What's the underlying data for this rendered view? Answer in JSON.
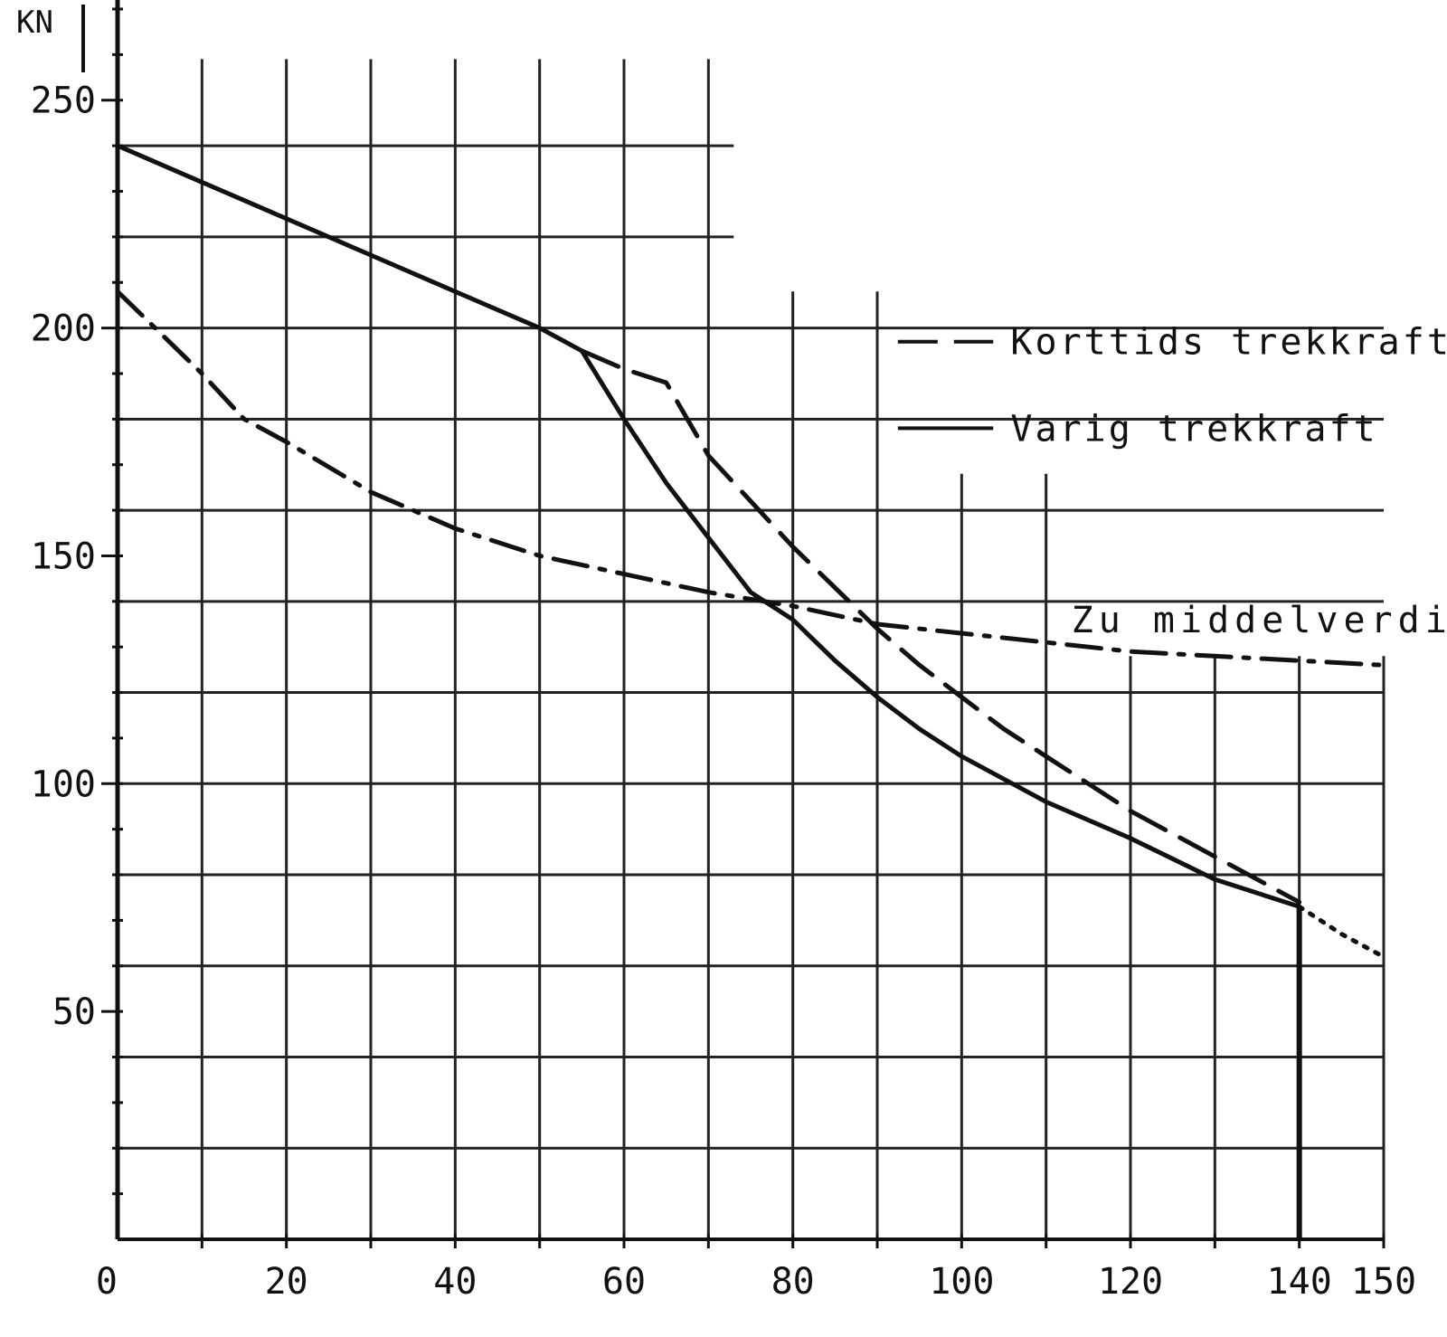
{
  "chart_data": {
    "type": "line",
    "title": "",
    "xlabel": "",
    "ylabel": "KN",
    "xlim": [
      0,
      150
    ],
    "ylim": [
      0,
      270
    ],
    "x_ticks": [
      {
        "value": 0,
        "label": "0"
      },
      {
        "value": 20,
        "label": "20"
      },
      {
        "value": 40,
        "label": "40"
      },
      {
        "value": 60,
        "label": "60"
      },
      {
        "value": 80,
        "label": "80"
      },
      {
        "value": 100,
        "label": "100"
      },
      {
        "value": 120,
        "label": "120"
      },
      {
        "value": 140,
        "label": "140"
      },
      {
        "value": 150,
        "label": "150"
      }
    ],
    "y_ticks": [
      {
        "value": 50,
        "label": "50"
      },
      {
        "value": 100,
        "label": "100"
      },
      {
        "value": 150,
        "label": "150"
      },
      {
        "value": 200,
        "label": "200"
      },
      {
        "value": 250,
        "label": "250"
      }
    ],
    "grid": true,
    "legend_position": "right",
    "series": [
      {
        "name": "Korttids trekkraft",
        "style": "dashed",
        "points": [
          [
            55,
            195
          ],
          [
            60,
            191
          ],
          [
            65,
            188
          ],
          [
            70,
            172
          ],
          [
            75,
            162
          ],
          [
            80,
            152
          ],
          [
            85,
            143
          ],
          [
            90,
            134
          ],
          [
            95,
            126
          ],
          [
            100,
            119
          ],
          [
            105,
            112
          ],
          [
            110,
            106
          ],
          [
            115,
            100
          ],
          [
            120,
            94
          ],
          [
            125,
            89
          ],
          [
            130,
            84
          ],
          [
            135,
            79
          ],
          [
            140,
            74
          ]
        ]
      },
      {
        "name": "Varig trekkraft",
        "style": "solid",
        "points": [
          [
            0,
            240
          ],
          [
            10,
            232
          ],
          [
            20,
            224
          ],
          [
            30,
            216
          ],
          [
            40,
            208
          ],
          [
            50,
            200
          ],
          [
            55,
            195
          ],
          [
            60,
            180
          ],
          [
            65,
            166
          ],
          [
            70,
            154
          ],
          [
            75,
            142
          ],
          [
            80,
            136
          ],
          [
            85,
            127
          ],
          [
            90,
            119
          ],
          [
            95,
            112
          ],
          [
            100,
            106
          ],
          [
            110,
            96
          ],
          [
            120,
            88
          ],
          [
            130,
            79
          ],
          [
            140,
            73
          ]
        ]
      },
      {
        "name": "",
        "style": "dotted",
        "points": [
          [
            140,
            73
          ],
          [
            145,
            67
          ],
          [
            150,
            62
          ]
        ]
      },
      {
        "name": "",
        "style": "dashdot",
        "points": [
          [
            0,
            208
          ],
          [
            5,
            199
          ],
          [
            10,
            190
          ],
          [
            15,
            180
          ],
          [
            20,
            175
          ],
          [
            30,
            164
          ],
          [
            40,
            156
          ],
          [
            50,
            150
          ],
          [
            60,
            146
          ],
          [
            70,
            142
          ],
          [
            80,
            139
          ],
          [
            90,
            135
          ],
          [
            100,
            133
          ],
          [
            110,
            131
          ],
          [
            120,
            129
          ],
          [
            130,
            128
          ],
          [
            140,
            127
          ],
          [
            150,
            126
          ]
        ]
      }
    ],
    "annotations": [
      {
        "text": "Zu middelverdi",
        "x": 113,
        "y": 136
      }
    ]
  }
}
